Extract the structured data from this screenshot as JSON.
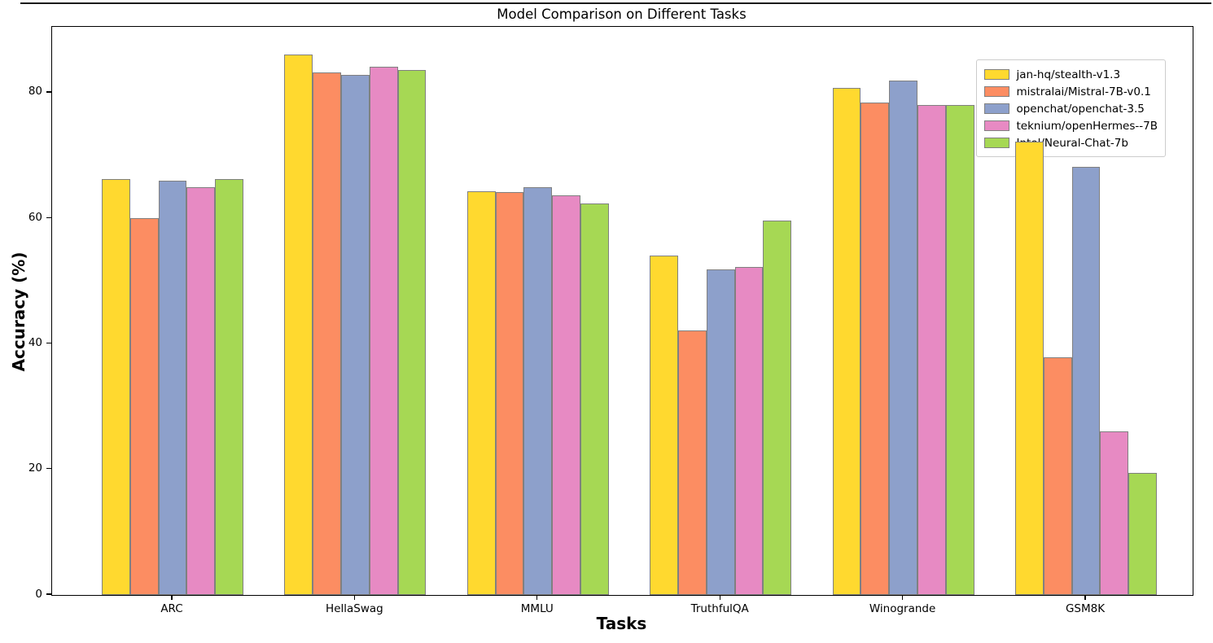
{
  "chart_data": {
    "type": "bar",
    "title": "Model Comparison on Different Tasks",
    "xlabel": "Tasks",
    "ylabel": "Accuracy (%)",
    "categories": [
      "ARC",
      "HellaSwag",
      "MMLU",
      "TruthfulQA",
      "Winogrande",
      "GSM8K"
    ],
    "series": [
      {
        "name": "jan-hq/stealth-v1.3",
        "color": "#FFD92F",
        "values": [
          66.3,
          86.1,
          64.3,
          54.1,
          80.8,
          72.2
        ]
      },
      {
        "name": "mistralai/Mistral-7B-v0.1",
        "color": "#FC8D62",
        "values": [
          60.0,
          83.3,
          64.2,
          42.2,
          78.4,
          37.8
        ]
      },
      {
        "name": "openchat/openchat-3.5",
        "color": "#8DA0CB",
        "values": [
          66.0,
          82.9,
          65.0,
          51.9,
          81.9,
          68.2
        ]
      },
      {
        "name": "teknium/openHermes--7B",
        "color": "#E78AC3",
        "values": [
          64.9,
          84.2,
          63.6,
          52.2,
          78.1,
          26.1
        ]
      },
      {
        "name": "Intel/Neural-Chat-7b",
        "color": "#A6D854",
        "values": [
          66.2,
          83.6,
          62.4,
          59.7,
          78.1,
          19.5
        ]
      }
    ],
    "y_ticks": [
      0,
      20,
      40,
      60,
      80
    ],
    "ylim": [
      0,
      90.5
    ],
    "grid": false,
    "legend_position": "upper right",
    "bar_edge_color": "#808080",
    "axis_color": "#000000"
  }
}
